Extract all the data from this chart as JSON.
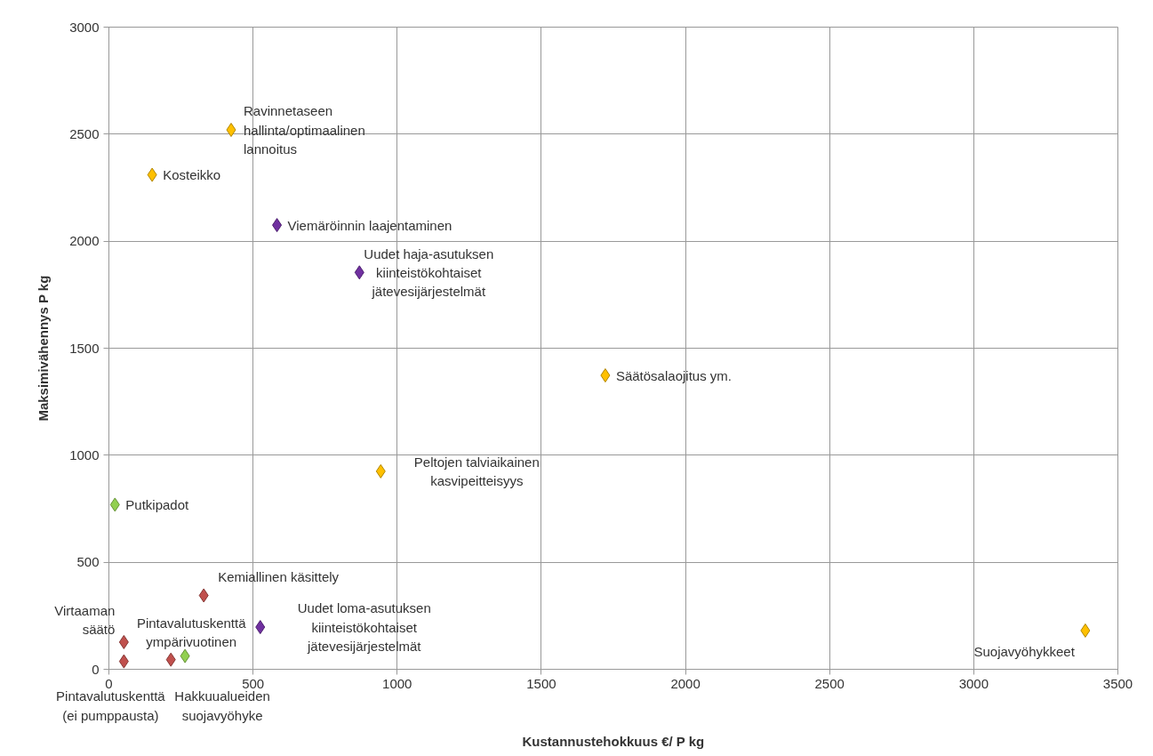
{
  "chart_data": {
    "type": "scatter",
    "xlabel": "Kustannustehokkuus €/ P kg",
    "ylabel": "Maksimivähennys P kg",
    "xlim": [
      0,
      3500
    ],
    "ylim": [
      0,
      3000
    ],
    "xticks": [
      0,
      500,
      1000,
      1500,
      2000,
      2500,
      3000,
      3500
    ],
    "yticks": [
      0,
      500,
      1000,
      1500,
      2000,
      2500,
      3000
    ],
    "grid": true,
    "marker": "diamond",
    "series": [
      {
        "color": "#ffc000",
        "x": [
          424,
          150,
          1722,
          943,
          3387
        ],
        "values": [
          2520,
          2310,
          1373,
          925,
          181
        ]
      },
      {
        "color": "#7030a0",
        "x": [
          583,
          869,
          525
        ],
        "values": [
          2075,
          1854,
          197
        ]
      },
      {
        "color": "#92d050",
        "x": [
          21,
          264
        ],
        "values": [
          769,
          62
        ]
      },
      {
        "color": "#c0504d",
        "x": [
          329,
          52,
          215,
          52
        ],
        "values": [
          345,
          127,
          45,
          37
        ]
      }
    ],
    "annotations": [
      {
        "text": "Ravinnetaseen\nhallinta/optimaalinen\nlannoitus",
        "x": 424,
        "y": 2520
      },
      {
        "text": "Kosteikko",
        "x": 150,
        "y": 2310
      },
      {
        "text": "Viemäröinnin laajentaminen",
        "x": 583,
        "y": 2075
      },
      {
        "text": "Uudet haja-asutuksen\nkiinteistökohtaiset\njätevesijärjestelmät",
        "x": 869,
        "y": 1854
      },
      {
        "text": "Säätösalaojitus ym.",
        "x": 1722,
        "y": 1373
      },
      {
        "text": "Peltojen talviaikainen\nkasvipeitteisyys",
        "x": 943,
        "y": 925
      },
      {
        "text": "Putkipadot",
        "x": 21,
        "y": 769
      },
      {
        "text": "Kemiallinen käsittely",
        "x": 329,
        "y": 345
      },
      {
        "text": "Uudet loma-asutuksen\nkiinteistökohtaiset\njätevesijärjestelmät",
        "x": 525,
        "y": 197
      },
      {
        "text": "Virtaaman\nsäätö",
        "x": 52,
        "y": 127
      },
      {
        "text": "Pintavalutuskenttä\nympärivuotinen",
        "x": 215,
        "y": 45
      },
      {
        "text": "Pintavalutuskenttä\n(ei pumppausta)",
        "x": 52,
        "y": 37
      },
      {
        "text": "Hakkuualueiden\nsuojavyöhyke",
        "x": 264,
        "y": 62
      },
      {
        "text": "Suojavyöhykkeet",
        "x": 3387,
        "y": 181
      }
    ]
  }
}
